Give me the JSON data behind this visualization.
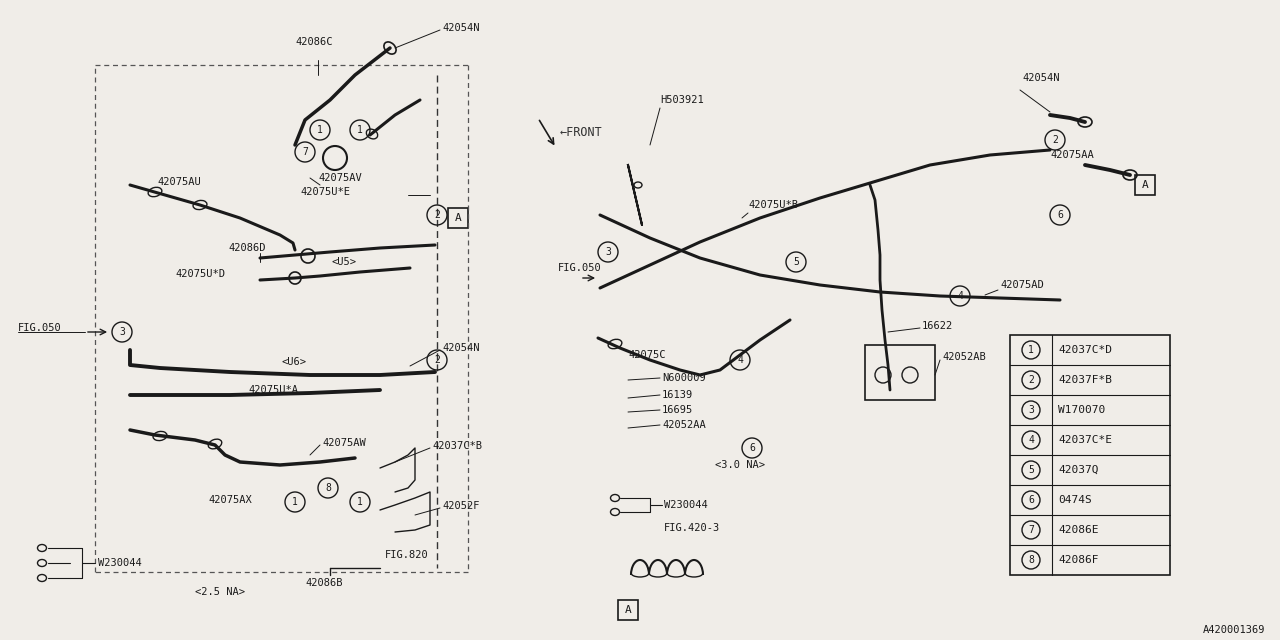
{
  "bg_color": "#f0ede8",
  "line_color": "#1a1a1a",
  "diagram_id": "A420001369",
  "legend": [
    {
      "num": 1,
      "part": "42037C*D"
    },
    {
      "num": 2,
      "part": "42037F*B"
    },
    {
      "num": 3,
      "part": "W170070"
    },
    {
      "num": 4,
      "part": "42037C*E"
    },
    {
      "num": 5,
      "part": "42037Q"
    },
    {
      "num": 6,
      "part": "0474S"
    },
    {
      "num": 7,
      "part": "42086E"
    },
    {
      "num": 8,
      "part": "42086F"
    }
  ]
}
